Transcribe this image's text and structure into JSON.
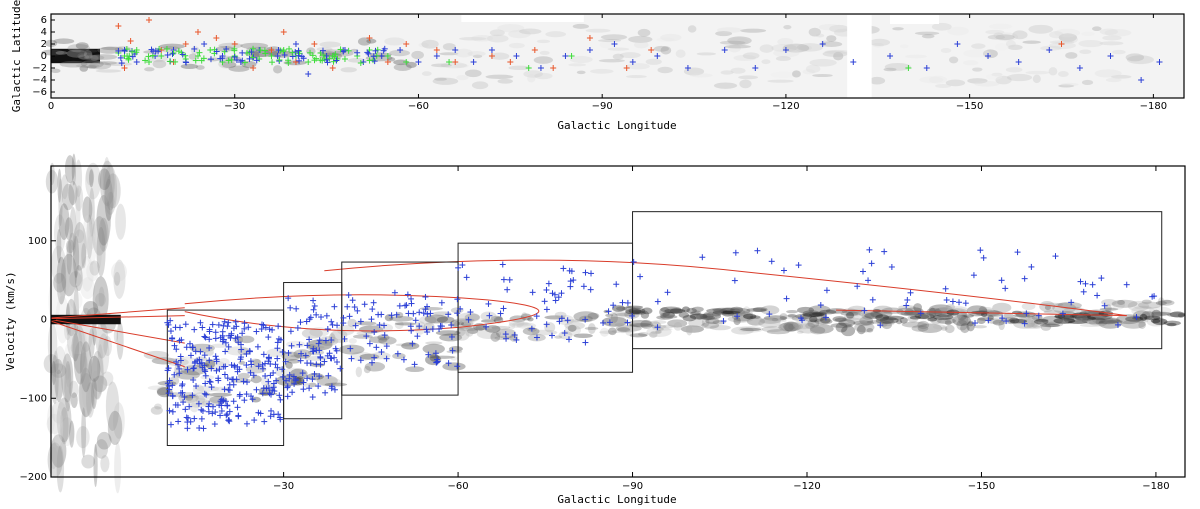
{
  "chart_data": [
    {
      "type": "scatter",
      "xlabel": "Galactic Longitude",
      "ylabel": "Galactic Latitude",
      "xlim": [
        0,
        -185
      ],
      "ylim": [
        -7,
        7
      ],
      "xticks": [
        0,
        -30,
        -60,
        -90,
        -120,
        -150,
        -180
      ],
      "xtick_labels": [
        "0",
        "−30",
        "−60",
        "−90",
        "−120",
        "−150",
        "−180"
      ],
      "yticks": [
        6,
        4,
        2,
        0,
        -2,
        -4,
        -6
      ],
      "ytick_labels": [
        "6",
        "4",
        "2",
        "0",
        "−2",
        "−4",
        "−6"
      ],
      "background": "grayscale emission map",
      "colors": {
        "red": "#e8562a",
        "blue": "#2b3fd6",
        "green": "#3ddc3a"
      },
      "series": [
        {
          "color": "red",
          "points": [
            [
              -11,
              5
            ],
            [
              -16,
              6
            ],
            [
              -13,
              2.5
            ],
            [
              -18,
              1
            ],
            [
              -20,
              -1
            ],
            [
              -24,
              4
            ],
            [
              -27,
              3
            ],
            [
              -30,
              2
            ],
            [
              -33,
              -2
            ],
            [
              -36,
              1
            ],
            [
              -38,
              4
            ],
            [
              -40,
              -1
            ],
            [
              -43,
              2
            ],
            [
              -46,
              -2
            ],
            [
              -48,
              1
            ],
            [
              -52,
              3
            ],
            [
              -55,
              -1
            ],
            [
              -58,
              2
            ],
            [
              -63,
              1
            ],
            [
              -66,
              -1
            ],
            [
              -72,
              0
            ],
            [
              -75,
              -1
            ],
            [
              -79,
              1
            ],
            [
              -82,
              -2
            ],
            [
              -88,
              3
            ],
            [
              -94,
              -2
            ],
            [
              -98,
              1
            ],
            [
              -165,
              2
            ],
            [
              -12,
              -2
            ],
            [
              -22,
              2
            ]
          ]
        },
        {
          "color": "blue",
          "points": [
            [
              -12,
              1
            ],
            [
              -14,
              -1
            ],
            [
              -17,
              0
            ],
            [
              -20,
              1
            ],
            [
              -22,
              -1
            ],
            [
              -25,
              2
            ],
            [
              -28,
              0
            ],
            [
              -31,
              -1
            ],
            [
              -34,
              1
            ],
            [
              -37,
              0
            ],
            [
              -40,
              2
            ],
            [
              -42,
              -3
            ],
            [
              -45,
              0
            ],
            [
              -48,
              1
            ],
            [
              -51,
              -1
            ],
            [
              -54,
              0
            ],
            [
              -57,
              1
            ],
            [
              -60,
              -1
            ],
            [
              -63,
              0
            ],
            [
              -66,
              1
            ],
            [
              -69,
              -1
            ],
            [
              -72,
              1
            ],
            [
              -76,
              0
            ],
            [
              -80,
              -2
            ],
            [
              -84,
              0
            ],
            [
              -88,
              1
            ],
            [
              -92,
              2
            ],
            [
              -95,
              -1
            ],
            [
              -99,
              0
            ],
            [
              -104,
              -2
            ],
            [
              -110,
              1
            ],
            [
              -115,
              -2
            ],
            [
              -120,
              1
            ],
            [
              -126,
              2
            ],
            [
              -131,
              -1
            ],
            [
              -137,
              0
            ],
            [
              -143,
              -2
            ],
            [
              -148,
              2
            ],
            [
              -153,
              0
            ],
            [
              -158,
              -1
            ],
            [
              -163,
              1
            ],
            [
              -168,
              -2
            ],
            [
              -173,
              0
            ],
            [
              -178,
              -4
            ],
            [
              -181,
              -1
            ]
          ]
        },
        {
          "color": "green",
          "points": [
            [
              -12,
              0
            ],
            [
              -14,
              1
            ],
            [
              -16,
              -1
            ],
            [
              -18,
              0
            ],
            [
              -20,
              0.5
            ],
            [
              -22,
              -0.5
            ],
            [
              -24,
              0
            ],
            [
              -26,
              1
            ],
            [
              -28,
              -1
            ],
            [
              -30,
              0
            ],
            [
              -32,
              0.5
            ],
            [
              -34,
              -0.5
            ],
            [
              -36,
              0
            ],
            [
              -38,
              1
            ],
            [
              -40,
              0
            ],
            [
              -42,
              -1
            ],
            [
              -44,
              0.5
            ],
            [
              -46,
              0
            ],
            [
              -48,
              -0.5
            ],
            [
              -50,
              0
            ],
            [
              -52,
              1
            ],
            [
              -55,
              0
            ],
            [
              -58,
              -1
            ],
            [
              -65,
              -1
            ],
            [
              -78,
              -2
            ],
            [
              -85,
              0
            ],
            [
              -140,
              -2
            ]
          ]
        }
      ]
    },
    {
      "type": "scatter",
      "xlabel": "Galactic Longitude",
      "ylabel": "Velocity (km/s)",
      "xlim": [
        10,
        -185
      ],
      "ylim": [
        -200,
        195
      ],
      "xticks": [
        -30,
        -60,
        -90,
        -120,
        -150,
        -180
      ],
      "xtick_labels": [
        "−30",
        "−60",
        "−90",
        "−120",
        "−150",
        "−180"
      ],
      "yticks": [
        100,
        0,
        -100,
        -200
      ],
      "ytick_labels": [
        "100",
        "0",
        "−100",
        "−200"
      ],
      "background": "grayscale longitude-velocity emission map",
      "colors": {
        "points": "#2b3fd6",
        "curves": "#d93c2a",
        "boxes": "#222222"
      },
      "boxes": [
        {
          "lmin": -10,
          "lmax": -30,
          "vmin": -160,
          "vmax": 12
        },
        {
          "lmin": -30,
          "lmax": -40,
          "vmin": -126,
          "vmax": 47
        },
        {
          "lmin": -40,
          "lmax": -60,
          "vmin": -96,
          "vmax": 73
        },
        {
          "lmin": -60,
          "lmax": -90,
          "vmin": -67,
          "vmax": 97
        },
        {
          "lmin": -90,
          "lmax": -181,
          "vmin": -37,
          "vmax": 137
        }
      ],
      "clusters": [
        {
          "lmin": -10,
          "lmax": -30,
          "vmin": -140,
          "vmax": 0,
          "n": 260
        },
        {
          "lmin": -30,
          "lmax": -40,
          "vmin": -100,
          "vmax": 30,
          "n": 80
        },
        {
          "lmin": -40,
          "lmax": -60,
          "vmin": -60,
          "vmax": 40,
          "n": 80
        },
        {
          "lmin": -60,
          "lmax": -90,
          "vmin": -30,
          "vmax": 70,
          "n": 60
        },
        {
          "lmin": -90,
          "lmax": -180,
          "vmin": -10,
          "vmax": 90,
          "n": 70
        }
      ]
    }
  ]
}
